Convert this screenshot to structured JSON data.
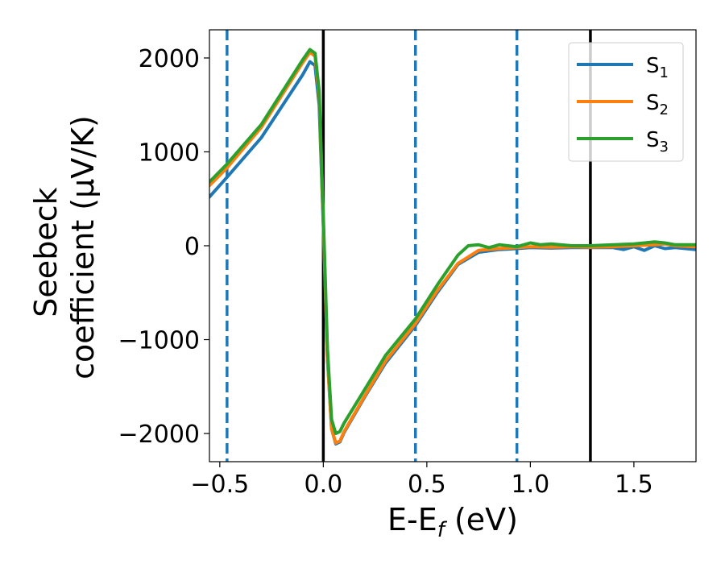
{
  "chart_data": {
    "type": "line",
    "title": "",
    "xlabel": "E-E_f (eV)",
    "xlabel_parts": {
      "main": "E-E",
      "sub": "f",
      "unit": " (eV)"
    },
    "ylabel": "Seebeck coefficient (μV/K)",
    "ylabel_lines": [
      "Seebeck",
      "coefficient  (μV/K)"
    ],
    "xlim": [
      -0.55,
      1.8
    ],
    "ylim": [
      -2300,
      2300
    ],
    "xticks": [
      -0.5,
      0.0,
      0.5,
      1.0,
      1.5
    ],
    "xtick_labels": [
      "−0.5",
      "0.0",
      "0.5",
      "1.0",
      "1.5"
    ],
    "yticks": [
      -2000,
      -1000,
      0,
      1000,
      2000
    ],
    "ytick_labels": [
      "−2000",
      "−1000",
      "0",
      "1000",
      "2000"
    ],
    "grid": false,
    "legend_position": "top-right",
    "vlines": [
      {
        "x": -0.465,
        "style": "dashed",
        "color": "#1f77b4"
      },
      {
        "x": 0.0,
        "style": "solid",
        "color": "#000000"
      },
      {
        "x": 0.445,
        "style": "dashed",
        "color": "#1f77b4"
      },
      {
        "x": 0.935,
        "style": "dashed",
        "color": "#1f77b4"
      },
      {
        "x": 1.29,
        "style": "solid",
        "color": "#000000"
      }
    ],
    "series": [
      {
        "name": "S_1",
        "label_main": "S",
        "label_sub": "1",
        "color": "#1f77b4",
        "x": [
          -0.55,
          -0.465,
          -0.3,
          -0.1,
          -0.065,
          -0.04,
          -0.02,
          0.0,
          0.02,
          0.04,
          0.06,
          0.08,
          0.1,
          0.2,
          0.3,
          0.445,
          0.55,
          0.65,
          0.75,
          0.85,
          0.935,
          1.0,
          1.1,
          1.2,
          1.29,
          1.4,
          1.45,
          1.5,
          1.55,
          1.6,
          1.65,
          1.7,
          1.8
        ],
        "y": [
          520,
          730,
          1150,
          1820,
          1960,
          1920,
          1500,
          200,
          -1200,
          -1950,
          -2110,
          -2090,
          -1990,
          -1610,
          -1250,
          -850,
          -500,
          -200,
          -70,
          -40,
          -30,
          -20,
          -25,
          -20,
          -20,
          -20,
          -40,
          -10,
          -50,
          0,
          -30,
          -20,
          -40
        ]
      },
      {
        "name": "S_2",
        "label_main": "S",
        "label_sub": "2",
        "color": "#ff7f0e",
        "x": [
          -0.55,
          -0.465,
          -0.3,
          -0.1,
          -0.065,
          -0.04,
          -0.02,
          0.0,
          0.02,
          0.04,
          0.06,
          0.08,
          0.1,
          0.2,
          0.3,
          0.445,
          0.55,
          0.65,
          0.75,
          0.85,
          0.935,
          1.0,
          1.1,
          1.2,
          1.29,
          1.4,
          1.5,
          1.6,
          1.65,
          1.7,
          1.8
        ],
        "y": [
          640,
          830,
          1260,
          1950,
          2060,
          2020,
          1600,
          250,
          -1200,
          -1950,
          -2100,
          -2080,
          -1980,
          -1600,
          -1230,
          -830,
          -480,
          -190,
          -50,
          -30,
          -20,
          -10,
          -15,
          -10,
          -15,
          -10,
          0,
          10,
          20,
          0,
          -10
        ]
      },
      {
        "name": "S_3",
        "label_main": "S",
        "label_sub": "3",
        "color": "#2ca02c",
        "x": [
          -0.55,
          -0.465,
          -0.3,
          -0.1,
          -0.065,
          -0.04,
          -0.02,
          0.0,
          0.02,
          0.04,
          0.06,
          0.08,
          0.1,
          0.2,
          0.3,
          0.445,
          0.55,
          0.65,
          0.7,
          0.75,
          0.8,
          0.85,
          0.935,
          1.0,
          1.05,
          1.1,
          1.2,
          1.29,
          1.4,
          1.5,
          1.6,
          1.65,
          1.7,
          1.8
        ],
        "y": [
          680,
          870,
          1290,
          1980,
          2090,
          2050,
          1650,
          300,
          -1100,
          -1850,
          -2000,
          -1980,
          -1890,
          -1530,
          -1170,
          -780,
          -420,
          -100,
          0,
          10,
          -20,
          10,
          -10,
          30,
          10,
          20,
          0,
          0,
          10,
          20,
          40,
          30,
          10,
          10
        ]
      }
    ]
  }
}
